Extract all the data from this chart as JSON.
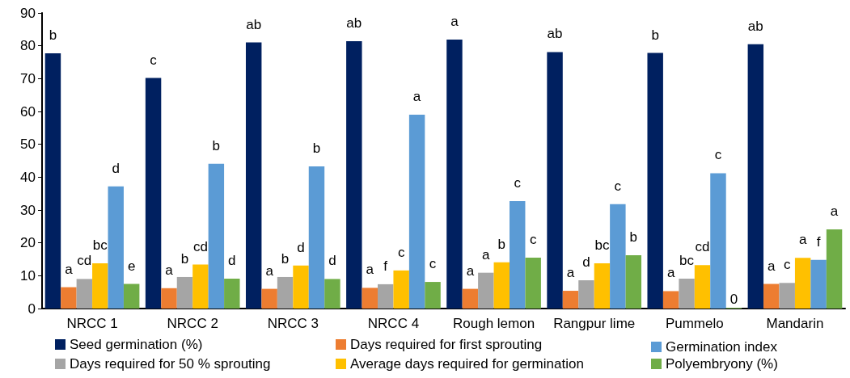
{
  "chart_data": {
    "type": "bar",
    "categories": [
      "NRCC 1",
      "NRCC 2",
      "NRCC 3",
      "NRCC 4",
      "Rough lemon",
      "Rangpur lime",
      "Pummelo",
      "Mandarin"
    ],
    "series": [
      {
        "name": "Seed germination (%)",
        "color": "#002060",
        "values": [
          77.7,
          70.2,
          81,
          81.4,
          81.9,
          78.1,
          77.8,
          80.5
        ],
        "value_labels": [
          "b",
          "c",
          "ab",
          "ab",
          "a",
          "ab",
          "b",
          "ab"
        ]
      },
      {
        "name": "Days required for first sprouting",
        "color": "#ed7d31",
        "values": [
          6.5,
          6.2,
          6.0,
          6.3,
          6.0,
          5.4,
          5.3,
          7.5
        ],
        "value_labels": [
          "a",
          "a",
          "a",
          "a",
          "a",
          "a",
          "a",
          "a"
        ]
      },
      {
        "name": "Days required for 50 % sprouting",
        "color": "#a5a5a5",
        "values": [
          9.0,
          9.6,
          9.6,
          7.4,
          10.9,
          8.6,
          9.1,
          7.8
        ],
        "value_labels": [
          "cd",
          "b",
          "b",
          "f",
          "a",
          "d",
          "bc",
          "c"
        ]
      },
      {
        "name": "Average days required for germination",
        "color": "#ffc000",
        "values": [
          13.8,
          13.4,
          13.1,
          11.6,
          14.1,
          13.8,
          13.2,
          15.4
        ],
        "value_labels": [
          "bc",
          "cd",
          "d",
          "c",
          "b",
          "bc",
          "cd",
          "a"
        ]
      },
      {
        "name": "Germination index",
        "color": "#5b9bd5",
        "values": [
          37.2,
          44.1,
          43.3,
          59.0,
          32.7,
          31.8,
          41.2,
          14.8
        ],
        "value_labels": [
          "d",
          "b",
          "b",
          "a",
          "c",
          "c",
          "c",
          "f"
        ]
      },
      {
        "name": "Polyembryony (%)",
        "color": "#70ad47",
        "values": [
          7.5,
          9.1,
          9.0,
          8.1,
          15.5,
          16.2,
          0,
          24.1
        ],
        "value_labels": [
          "e",
          "d",
          "d",
          "c",
          "c",
          "b",
          "0",
          "a"
        ]
      }
    ],
    "ylim": [
      0,
      90
    ],
    "yticks": [
      0,
      10,
      20,
      30,
      40,
      50,
      60,
      70,
      80,
      90
    ],
    "grid": false,
    "legend": "bottom"
  }
}
